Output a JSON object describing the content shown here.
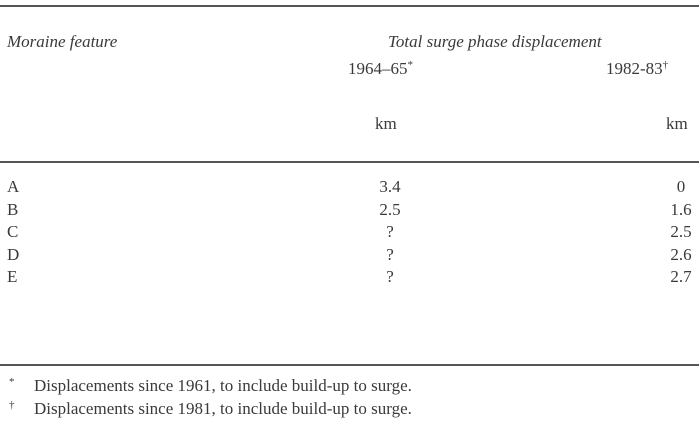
{
  "table": {
    "header": {
      "row_label": "Moraine feature",
      "group_label": "Total surge phase displacement",
      "columns": [
        {
          "period": "1964–65",
          "mark": "*",
          "unit": "km"
        },
        {
          "period": "1982-83",
          "mark": "†",
          "unit": "km"
        }
      ]
    },
    "rows": [
      {
        "feature": "A",
        "v1": "3.4",
        "v2": "0"
      },
      {
        "feature": "B",
        "v1": "2.5",
        "v2": "1.6"
      },
      {
        "feature": "C",
        "v1": "?",
        "v2": "2.5"
      },
      {
        "feature": "D",
        "v1": "?",
        "v2": "2.6"
      },
      {
        "feature": "E",
        "v1": "?",
        "v2": "2.7"
      }
    ],
    "footnotes": [
      {
        "mark": "*",
        "text": "Displacements since 1961, to include build-up to surge."
      },
      {
        "mark": "†",
        "text": "Displacements since 1981, to include build-up to surge."
      }
    ]
  }
}
